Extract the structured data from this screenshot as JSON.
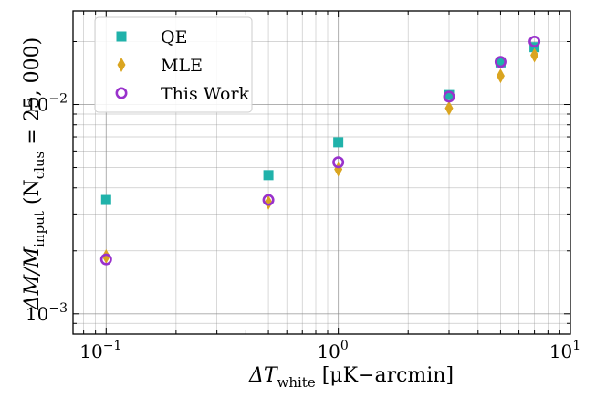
{
  "chart_data": {
    "type": "scatter",
    "title": "",
    "x_scale": "log",
    "y_scale": "log",
    "xlim": [
      0.072,
      10
    ],
    "ylim": [
      0.0008,
      0.028
    ],
    "xlabel": {
      "main": "ΔT",
      "sub": "white",
      "rest": " [μK−arcmin]"
    },
    "ylabel": {
      "main": "ΔM/M",
      "sub": "input",
      "paren_open": " (N",
      "paren_sub": "clus",
      "paren_rest": " = 25, 000)"
    },
    "x_ticks": [
      {
        "base": "10",
        "exp": "−1",
        "value": 0.1
      },
      {
        "base": "10",
        "exp": "0",
        "value": 1
      },
      {
        "base": "10",
        "exp": "1",
        "value": 10
      }
    ],
    "y_ticks": [
      {
        "base": "10",
        "exp": "−3",
        "value": 0.001
      },
      {
        "base": "10",
        "exp": "−2",
        "value": 0.01
      }
    ],
    "grid": true,
    "legend_position": "top-left",
    "series": [
      {
        "name": "QE",
        "marker": "square",
        "color": "#20b2aa",
        "x": [
          0.1,
          0.5,
          1.0,
          3.0,
          5.0,
          7.0
        ],
        "y": [
          0.0035,
          0.0046,
          0.0066,
          0.0111,
          0.0159,
          0.0188
        ]
      },
      {
        "name": "MLE",
        "marker": "thin_diamond",
        "color": "#daa520",
        "x": [
          0.1,
          0.5,
          1.0,
          3.0,
          5.0,
          7.0
        ],
        "y": [
          0.00188,
          0.0034,
          0.0049,
          0.0096,
          0.0137,
          0.0172
        ]
      },
      {
        "name": "This Work",
        "marker": "circle",
        "color": "#9932cc",
        "x": [
          0.1,
          0.5,
          1.0,
          3.0,
          5.0,
          7.0
        ],
        "y": [
          0.00182,
          0.0035,
          0.0053,
          0.0109,
          0.016,
          0.02
        ]
      }
    ]
  }
}
